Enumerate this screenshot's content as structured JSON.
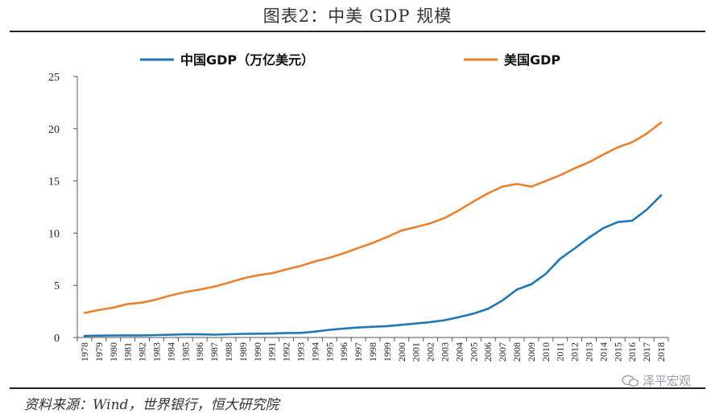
{
  "header": {
    "title": "图表2：中美 GDP 规模"
  },
  "footer": {
    "source": "资料来源：Wind，世界银行，恒大研究院",
    "watermark": "泽平宏观"
  },
  "chart_data": {
    "type": "line",
    "title": "图表2：中美 GDP 规模",
    "xlabel": "",
    "ylabel": "",
    "ylim": [
      0,
      25
    ],
    "yticks": [
      0,
      5,
      10,
      15,
      20,
      25
    ],
    "grid": false,
    "legend_position": "top",
    "x": [
      "1978",
      "1979",
      "1980",
      "1981",
      "1982",
      "1983",
      "1984",
      "1985",
      "1986",
      "1987",
      "1988",
      "1989",
      "1990",
      "1991",
      "1992",
      "1993",
      "1994",
      "1995",
      "1996",
      "1997",
      "1998",
      "1999",
      "2000",
      "2001",
      "2002",
      "2003",
      "2004",
      "2005",
      "2006",
      "2007",
      "2008",
      "2009",
      "2010",
      "2011",
      "2012",
      "2013",
      "2014",
      "2015",
      "2016",
      "2017",
      "2018"
    ],
    "series": [
      {
        "name": "中国GDP（万亿美元）",
        "color": "#1f77b4",
        "values": [
          0.15,
          0.18,
          0.19,
          0.2,
          0.2,
          0.23,
          0.26,
          0.31,
          0.3,
          0.27,
          0.31,
          0.35,
          0.36,
          0.38,
          0.43,
          0.44,
          0.56,
          0.73,
          0.86,
          0.96,
          1.03,
          1.09,
          1.21,
          1.34,
          1.47,
          1.66,
          1.96,
          2.29,
          2.75,
          3.55,
          4.59,
          5.1,
          6.09,
          7.55,
          8.53,
          9.57,
          10.48,
          11.06,
          11.19,
          12.24,
          13.61
        ]
      },
      {
        "name": "美国GDP",
        "color": "#e8822e",
        "values": [
          2.35,
          2.63,
          2.86,
          3.21,
          3.34,
          3.64,
          4.04,
          4.35,
          4.59,
          4.87,
          5.25,
          5.66,
          5.96,
          6.16,
          6.52,
          6.86,
          7.29,
          7.64,
          8.07,
          8.58,
          9.06,
          9.63,
          10.25,
          10.58,
          10.94,
          11.46,
          12.21,
          13.04,
          13.81,
          14.45,
          14.71,
          14.45,
          14.99,
          15.54,
          16.2,
          16.78,
          17.53,
          18.22,
          18.71,
          19.52,
          20.58
        ]
      }
    ]
  }
}
